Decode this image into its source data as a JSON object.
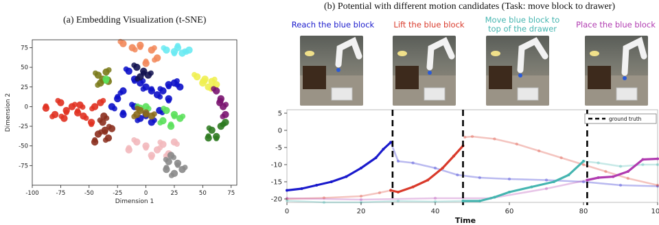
{
  "caption_a": "(a) Embedding Visualization (t-SNE)",
  "caption_b": "(b) Potential with different motion candidates (Task: move block to drawer)",
  "stages": [
    {
      "label_line1": "Reach the blue block",
      "label_line2": "",
      "color": "#1a1acc"
    },
    {
      "label_line1": "Lift the blue block",
      "label_line2": "",
      "color": "#d93a2b"
    },
    {
      "label_line1": "Move blue block to",
      "label_line2": "top of the drawer",
      "color": "#45b5b0"
    },
    {
      "label_line1": "Place the blue block",
      "label_line2": "",
      "color": "#b03ab0"
    }
  ],
  "chart_data": [
    {
      "type": "scatter",
      "title": "",
      "xlabel": "Dimension 1",
      "ylabel": "Dimension 2",
      "xlim": [
        -100,
        80
      ],
      "ylim": [
        -100,
        85
      ],
      "xticks": [
        -100,
        -75,
        -50,
        -25,
        0,
        25,
        50,
        75
      ],
      "yticks": [
        -75,
        -50,
        -25,
        0,
        25,
        50,
        75
      ],
      "grid": false,
      "clusters": [
        {
          "color": "#e03020",
          "points": [
            [
              -75,
              5
            ],
            [
              -70,
              -5
            ],
            [
              -65,
              0
            ],
            [
              -80,
              -10
            ],
            [
              -60,
              -8
            ],
            [
              -55,
              -12
            ],
            [
              -72,
              -15
            ],
            [
              -48,
              -20
            ],
            [
              -40,
              5
            ],
            [
              -45,
              0
            ],
            [
              -88,
              -2
            ],
            [
              -58,
              2
            ]
          ]
        },
        {
          "color": "#8b2f1e",
          "points": [
            [
              -38,
              -20
            ],
            [
              -36,
              -30
            ],
            [
              -42,
              -35
            ],
            [
              -33,
              -40
            ],
            [
              -45,
              -45
            ],
            [
              -37,
              -12
            ],
            [
              -30,
              -28
            ]
          ]
        },
        {
          "color": "#f2885a",
          "points": [
            [
              -20,
              80
            ],
            [
              -5,
              78
            ],
            [
              5,
              72
            ],
            [
              10,
              62
            ],
            [
              0,
              55
            ],
            [
              -12,
              75
            ]
          ]
        },
        {
          "color": "#6aeaf2",
          "points": [
            [
              18,
              72
            ],
            [
              25,
              70
            ],
            [
              32,
              68
            ],
            [
              38,
              72
            ],
            [
              28,
              75
            ]
          ]
        },
        {
          "color": "#7a7a1a",
          "points": [
            [
              -42,
              40
            ],
            [
              -38,
              35
            ],
            [
              -35,
              44
            ],
            [
              -40,
              30
            ],
            [
              -33,
              32
            ]
          ]
        },
        {
          "color": "#0c10c8",
          "points": [
            [
              -15,
              45
            ],
            [
              -10,
              35
            ],
            [
              -5,
              30
            ],
            [
              0,
              25
            ],
            [
              5,
              20
            ],
            [
              10,
              15
            ],
            [
              15,
              20
            ],
            [
              20,
              28
            ],
            [
              25,
              30
            ],
            [
              -20,
              20
            ],
            [
              -25,
              10
            ],
            [
              -30,
              0
            ],
            [
              -10,
              0
            ],
            [
              0,
              -10
            ],
            [
              5,
              -20
            ],
            [
              -5,
              -15
            ],
            [
              -20,
              -10
            ],
            [
              12,
              -5
            ],
            [
              30,
              25
            ],
            [
              20,
              10
            ]
          ]
        },
        {
          "color": "#121250",
          "points": [
            [
              -8,
              50
            ],
            [
              -2,
              45
            ],
            [
              2,
              40
            ],
            [
              -5,
              38
            ]
          ]
        },
        {
          "color": "#5ae05a",
          "points": [
            [
              18,
              -5
            ],
            [
              25,
              -10
            ],
            [
              30,
              -15
            ],
            [
              15,
              -18
            ],
            [
              22,
              -25
            ],
            [
              0,
              0
            ],
            [
              -5,
              -2
            ],
            [
              -35,
              35
            ]
          ]
        },
        {
          "color": "#8a6a1a",
          "points": [
            [
              -5,
              -5
            ],
            [
              0,
              -8
            ],
            [
              5,
              -12
            ],
            [
              -8,
              -10
            ]
          ]
        },
        {
          "color": "#f0f050",
          "points": [
            [
              45,
              38
            ],
            [
              52,
              35
            ],
            [
              58,
              32
            ],
            [
              62,
              28
            ],
            [
              50,
              30
            ],
            [
              55,
              25
            ]
          ]
        },
        {
          "color": "#7a1470",
          "points": [
            [
              62,
              20
            ],
            [
              66,
              10
            ],
            [
              68,
              0
            ],
            [
              70,
              -10
            ],
            [
              65,
              5
            ]
          ]
        },
        {
          "color": "#2d7a20",
          "points": [
            [
              58,
              -30
            ],
            [
              62,
              -38
            ],
            [
              66,
              -25
            ],
            [
              70,
              -20
            ],
            [
              55,
              -40
            ]
          ]
        },
        {
          "color": "#f2b8bc",
          "points": [
            [
              -8,
              -45
            ],
            [
              0,
              -50
            ],
            [
              10,
              -55
            ],
            [
              20,
              -60
            ],
            [
              -15,
              -55
            ],
            [
              25,
              -45
            ],
            [
              15,
              -48
            ],
            [
              5,
              -62
            ]
          ]
        },
        {
          "color": "#8a8a8a",
          "points": [
            [
              20,
              -70
            ],
            [
              28,
              -72
            ],
            [
              32,
              -80
            ],
            [
              25,
              -85
            ],
            [
              18,
              -80
            ],
            [
              22,
              -62
            ]
          ]
        }
      ]
    },
    {
      "type": "line",
      "title": "",
      "xlabel": "Time",
      "ylabel": "",
      "xlim": [
        0,
        100
      ],
      "ylim": [
        -21,
        6
      ],
      "xticks": [
        0,
        20,
        40,
        60,
        80,
        100
      ],
      "yticks": [
        5,
        0,
        -5,
        -10,
        -15,
        -20
      ],
      "legend": {
        "label": "ground truth",
        "position": "top-right"
      },
      "ground_truth_x": [
        28.5,
        47.5,
        81
      ],
      "series": [
        {
          "name": "Reach the blue block",
          "color": "#1a1acc",
          "solid": {
            "x": [
              0,
              4,
              8,
              12,
              16,
              20,
              24,
              26,
              28
            ],
            "y": [
              -17.5,
              -17,
              -16,
              -15,
              -13.5,
              -11,
              -8,
              -5.5,
              -3.5
            ]
          },
          "faded": {
            "x": [
              28,
              30,
              34,
              40,
              46,
              52,
              60,
              70,
              80,
              90,
              100
            ],
            "y": [
              -3.5,
              -9,
              -9.5,
              -11,
              -13,
              -13.8,
              -14.2,
              -14.5,
              -15,
              -16,
              -16.3
            ]
          }
        },
        {
          "name": "Lift the blue block",
          "color": "#d93a2b",
          "faded_before": {
            "x": [
              0,
              10,
              20,
              25,
              28
            ],
            "y": [
              -20,
              -19.7,
              -19.2,
              -18.2,
              -17.5
            ]
          },
          "solid": {
            "x": [
              28,
              30,
              34,
              38,
              42,
              45,
              47.5
            ],
            "y": [
              -17.5,
              -18,
              -16.5,
              -14.5,
              -11,
              -7.5,
              -4.5
            ]
          },
          "faded": {
            "x": [
              48,
              50,
              56,
              62,
              68,
              74,
              80,
              86,
              92,
              100
            ],
            "y": [
              -2,
              -1.8,
              -2.5,
              -4,
              -6,
              -8,
              -10,
              -12,
              -14,
              -16
            ]
          }
        },
        {
          "name": "Move blue block to top of the drawer",
          "color": "#45b5b0",
          "faded_before": {
            "x": [
              0,
              10,
              20,
              30,
              40,
              47.5
            ],
            "y": [
              -20.5,
              -21,
              -21,
              -20.6,
              -20.8,
              -20.6
            ]
          },
          "solid": {
            "x": [
              47.5,
              52,
              56,
              60,
              66,
              72,
              76,
              80
            ],
            "y": [
              -20.6,
              -20.6,
              -19.5,
              -18,
              -16.5,
              -15,
              -13,
              -9
            ]
          },
          "faded": {
            "x": [
              80,
              84,
              90,
              96,
              100
            ],
            "y": [
              -9,
              -9.5,
              -10.5,
              -10,
              -10
            ]
          }
        },
        {
          "name": "Place the blue block",
          "color": "#b03ab0",
          "faded_before": {
            "x": [
              0,
              20,
              40,
              55,
              70,
              81
            ],
            "y": [
              -19.8,
              -20.2,
              -19.8,
              -19.8,
              -17,
              -14.5
            ]
          },
          "solid": {
            "x": [
              81,
              84,
              88,
              92,
              96,
              100
            ],
            "y": [
              -14.5,
              -13.8,
              -13.5,
              -12,
              -8.5,
              -8.3
            ]
          }
        }
      ]
    }
  ]
}
